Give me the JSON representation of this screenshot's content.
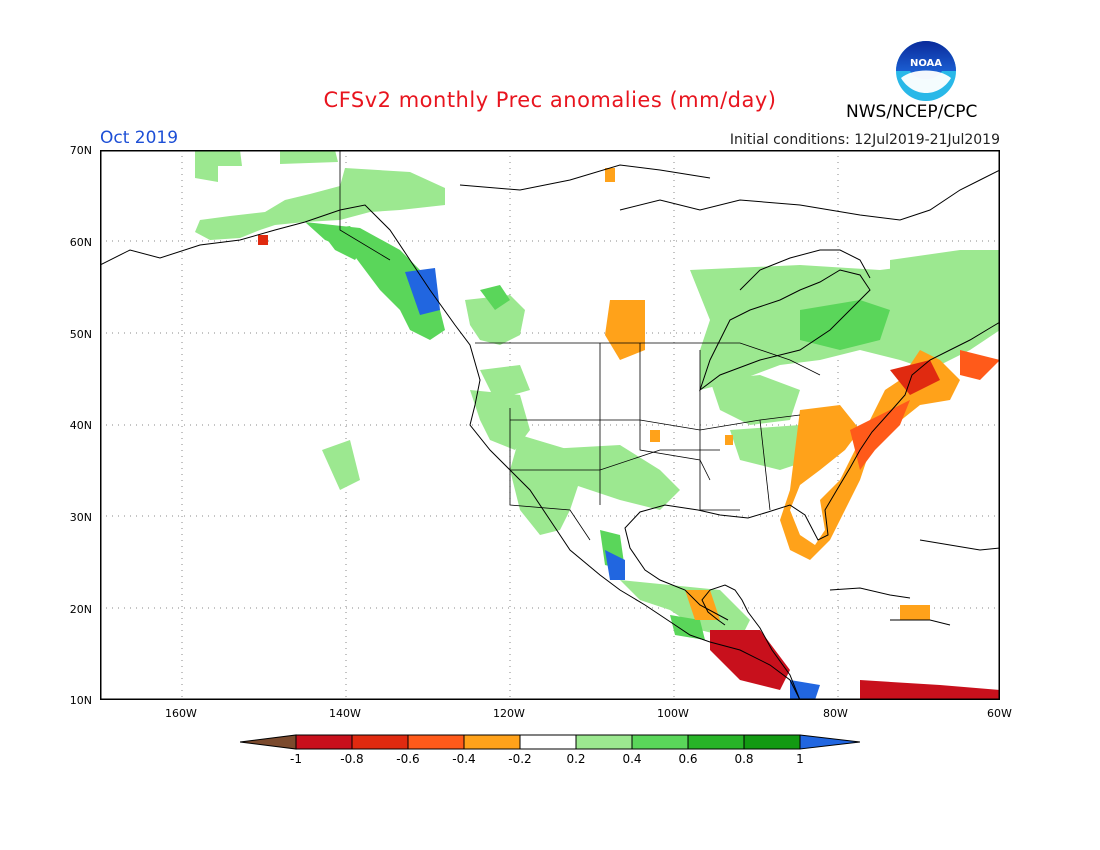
{
  "header": {
    "title": "CFSv2 monthly Prec anomalies (mm/day)",
    "valid_month": "Oct 2019",
    "initial_conditions": "Initial conditions: 12Jul2019-21Jul2019",
    "agency": "NWS/NCEP/CPC",
    "logo_text": "NOAA"
  },
  "map": {
    "latitude_labels": [
      "70N",
      "60N",
      "50N",
      "40N",
      "30N",
      "20N",
      "10N"
    ],
    "longitude_labels": [
      "160W",
      "140W",
      "120W",
      "100W",
      "80W",
      "60W"
    ],
    "region": "North America",
    "lon_range": [
      -171,
      -60
    ],
    "lat_range": [
      10,
      70
    ]
  },
  "legend": {
    "labels": [
      "-1",
      "-0.8",
      "-0.6",
      "-0.4",
      "-0.2",
      "0.2",
      "0.4",
      "0.6",
      "0.8",
      "1"
    ],
    "colors": [
      "#7b4a2d",
      "#c8101c",
      "#e02a10",
      "#ff5a1a",
      "#ffa21a",
      "#ffffff",
      "#9ce890",
      "#5ad65a",
      "#28b428",
      "#129a12",
      "#2166e0"
    ]
  },
  "anomaly_regions": [
    {
      "name": "wet-pacific-northwest",
      "color": "#5ad65a"
    },
    {
      "name": "dry-southeast-coast",
      "color": "#ff5a1a"
    },
    {
      "name": "dry-central-america",
      "color": "#c8101c"
    },
    {
      "name": "wet-great-lakes",
      "color": "#5ad65a"
    }
  ]
}
